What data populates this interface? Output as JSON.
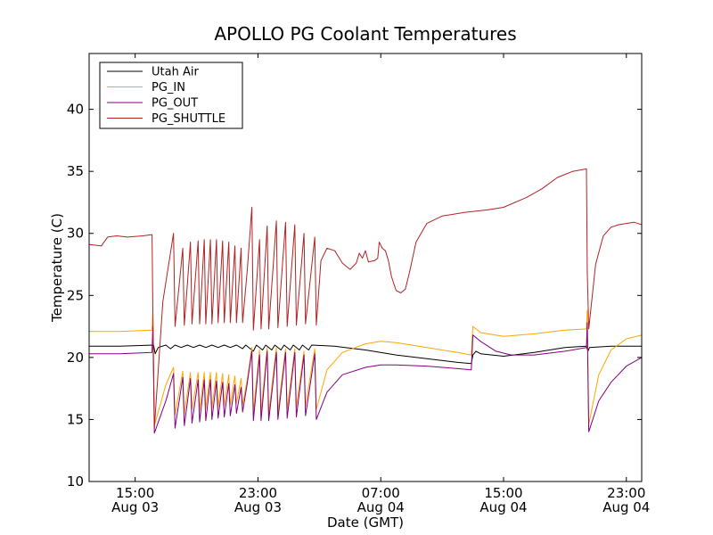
{
  "chart_data": {
    "type": "line",
    "title": "APOLLO PG Coolant Temperatures",
    "xlabel": "Date (GMT)",
    "ylabel": "Temperature (C)",
    "x_unit": "hours since Aug 03 12:00 GMT",
    "xlim": [
      0,
      36
    ],
    "ylim": [
      10,
      44.5
    ],
    "y_ticks": [
      10,
      15,
      20,
      25,
      30,
      35,
      40
    ],
    "x_ticks": [
      {
        "value": 3,
        "line1": "15:00",
        "line2": "Aug 03"
      },
      {
        "value": 11,
        "line1": "23:00",
        "line2": "Aug 03"
      },
      {
        "value": 19,
        "line1": "07:00",
        "line2": "Aug 04"
      },
      {
        "value": 27,
        "line1": "15:00",
        "line2": "Aug 04"
      },
      {
        "value": 35,
        "line1": "23:00",
        "line2": "Aug 04"
      }
    ],
    "grid": false,
    "legend_position": "upper-left",
    "series": [
      {
        "name": "Utah Air",
        "color": "#000000",
        "points": [
          [
            0,
            20.9
          ],
          [
            2,
            20.9
          ],
          [
            4.2,
            21.0
          ],
          [
            4.3,
            20.3
          ],
          [
            4.5,
            20.8
          ],
          [
            5,
            21.0
          ],
          [
            5.3,
            20.7
          ],
          [
            5.6,
            21.0
          ],
          [
            6,
            20.8
          ],
          [
            6.4,
            21.0
          ],
          [
            6.8,
            20.8
          ],
          [
            7.2,
            21.0
          ],
          [
            7.6,
            20.8
          ],
          [
            8,
            21.0
          ],
          [
            8.4,
            20.8
          ],
          [
            8.8,
            21.0
          ],
          [
            9.2,
            20.8
          ],
          [
            9.6,
            21.0
          ],
          [
            10,
            20.7
          ],
          [
            10.2,
            21.0
          ],
          [
            10.7,
            20.5
          ],
          [
            10.9,
            21.0
          ],
          [
            11.3,
            20.6
          ],
          [
            11.5,
            21.0
          ],
          [
            11.9,
            20.6
          ],
          [
            12.1,
            21.0
          ],
          [
            12.5,
            20.6
          ],
          [
            12.7,
            21.0
          ],
          [
            13.1,
            20.6
          ],
          [
            13.3,
            21.0
          ],
          [
            13.7,
            20.6
          ],
          [
            13.9,
            21.0
          ],
          [
            14.3,
            20.6
          ],
          [
            14.5,
            21.0
          ],
          [
            16,
            20.9
          ],
          [
            18,
            20.6
          ],
          [
            20,
            20.2
          ],
          [
            22,
            19.9
          ],
          [
            24,
            19.6
          ],
          [
            24.9,
            19.5
          ],
          [
            25.0,
            20.2
          ],
          [
            25.2,
            20.5
          ],
          [
            25.5,
            20.3
          ],
          [
            27,
            20.1
          ],
          [
            29,
            20.4
          ],
          [
            31,
            20.8
          ],
          [
            32.4,
            20.9
          ],
          [
            32.5,
            20.5
          ],
          [
            32.6,
            20.8
          ],
          [
            34,
            20.9
          ],
          [
            36,
            20.9
          ]
        ]
      },
      {
        "name": "PG_IN",
        "color": "#FFA500",
        "points": [
          [
            0,
            22.1
          ],
          [
            2,
            22.1
          ],
          [
            4.1,
            22.2
          ],
          [
            4.15,
            23.6
          ],
          [
            4.25,
            14.5
          ],
          [
            5,
            17.8
          ],
          [
            5.5,
            19.2
          ],
          [
            5.6,
            15.4
          ],
          [
            6.1,
            18.9
          ],
          [
            6.2,
            15.5
          ],
          [
            6.6,
            18.8
          ],
          [
            6.7,
            15.8
          ],
          [
            7.1,
            18.8
          ],
          [
            7.2,
            15.8
          ],
          [
            7.5,
            18.8
          ],
          [
            7.6,
            15.9
          ],
          [
            7.9,
            18.8
          ],
          [
            8.0,
            15.9
          ],
          [
            8.3,
            18.8
          ],
          [
            8.4,
            16.0
          ],
          [
            8.7,
            18.7
          ],
          [
            8.8,
            16.1
          ],
          [
            9.1,
            18.6
          ],
          [
            9.2,
            16.2
          ],
          [
            9.5,
            18.5
          ],
          [
            9.6,
            16.3
          ],
          [
            9.9,
            18.3
          ],
          [
            10.0,
            16.2
          ],
          [
            10.3,
            18.2
          ],
          [
            10.6,
            20.8
          ],
          [
            10.7,
            15.6
          ],
          [
            11.1,
            20.6
          ],
          [
            11.2,
            15.6
          ],
          [
            11.6,
            20.8
          ],
          [
            11.7,
            15.5
          ],
          [
            12.2,
            20.8
          ],
          [
            12.3,
            15.6
          ],
          [
            12.8,
            20.7
          ],
          [
            12.9,
            15.8
          ],
          [
            13.4,
            20.7
          ],
          [
            13.5,
            16.0
          ],
          [
            14.0,
            20.5
          ],
          [
            14.1,
            16.1
          ],
          [
            14.7,
            20.7
          ],
          [
            14.8,
            15.8
          ],
          [
            15.5,
            19.0
          ],
          [
            16.5,
            20.4
          ],
          [
            18,
            21.1
          ],
          [
            19,
            21.3
          ],
          [
            20,
            21.2
          ],
          [
            22,
            20.8
          ],
          [
            24,
            20.4
          ],
          [
            24.9,
            20.2
          ],
          [
            25.0,
            22.5
          ],
          [
            25.5,
            22.0
          ],
          [
            27,
            21.7
          ],
          [
            29,
            21.9
          ],
          [
            31,
            22.2
          ],
          [
            32.4,
            22.3
          ],
          [
            32.45,
            23.8
          ],
          [
            32.55,
            14.6
          ],
          [
            33.2,
            18.6
          ],
          [
            34,
            20.6
          ],
          [
            35,
            21.5
          ],
          [
            36,
            21.8
          ]
        ]
      },
      {
        "name": "PG_OUT",
        "color": "#800080",
        "points": [
          [
            0,
            20.3
          ],
          [
            2,
            20.3
          ],
          [
            4.1,
            20.4
          ],
          [
            4.15,
            22.5
          ],
          [
            4.25,
            13.9
          ],
          [
            5,
            16.5
          ],
          [
            5.5,
            18.7
          ],
          [
            5.6,
            14.3
          ],
          [
            6.1,
            18.4
          ],
          [
            6.2,
            14.5
          ],
          [
            6.6,
            18.3
          ],
          [
            6.7,
            14.7
          ],
          [
            7.1,
            18.2
          ],
          [
            7.2,
            14.8
          ],
          [
            7.5,
            18.2
          ],
          [
            7.6,
            14.9
          ],
          [
            7.9,
            18.2
          ],
          [
            8.0,
            15.0
          ],
          [
            8.3,
            18.1
          ],
          [
            8.4,
            15.1
          ],
          [
            8.7,
            18.0
          ],
          [
            8.8,
            15.2
          ],
          [
            9.1,
            17.9
          ],
          [
            9.2,
            15.3
          ],
          [
            9.5,
            17.8
          ],
          [
            9.6,
            15.5
          ],
          [
            9.9,
            17.6
          ],
          [
            10.0,
            15.6
          ],
          [
            10.3,
            17.9
          ],
          [
            10.6,
            20.5
          ],
          [
            10.7,
            14.9
          ],
          [
            11.1,
            20.2
          ],
          [
            11.2,
            14.9
          ],
          [
            11.6,
            20.5
          ],
          [
            11.7,
            14.9
          ],
          [
            12.2,
            20.4
          ],
          [
            12.3,
            15.0
          ],
          [
            12.8,
            20.4
          ],
          [
            12.9,
            15.1
          ],
          [
            13.4,
            20.4
          ],
          [
            13.5,
            15.2
          ],
          [
            14.0,
            20.2
          ],
          [
            14.1,
            15.3
          ],
          [
            14.7,
            20.3
          ],
          [
            14.8,
            15.0
          ],
          [
            15.5,
            17.2
          ],
          [
            16.5,
            18.6
          ],
          [
            18,
            19.2
          ],
          [
            19,
            19.4
          ],
          [
            20,
            19.4
          ],
          [
            22,
            19.3
          ],
          [
            24,
            19.1
          ],
          [
            24.9,
            19.0
          ],
          [
            25.0,
            21.8
          ],
          [
            25.5,
            21.3
          ],
          [
            26.5,
            20.5
          ],
          [
            27.5,
            20.2
          ],
          [
            29,
            20.2
          ],
          [
            31,
            20.5
          ],
          [
            32.4,
            20.8
          ],
          [
            32.45,
            22.8
          ],
          [
            32.55,
            14.0
          ],
          [
            33.2,
            16.5
          ],
          [
            34,
            18.0
          ],
          [
            35,
            19.3
          ],
          [
            36,
            20.0
          ]
        ]
      },
      {
        "name": "PG_SHUTTLE",
        "color": "#B22222",
        "points": [
          [
            0,
            29.1
          ],
          [
            0.8,
            29.0
          ],
          [
            1.2,
            29.7
          ],
          [
            1.8,
            29.8
          ],
          [
            2.5,
            29.7
          ],
          [
            3.5,
            29.8
          ],
          [
            4.1,
            29.9
          ],
          [
            4.15,
            23.8
          ],
          [
            4.25,
            14.3
          ],
          [
            4.8,
            24.5
          ],
          [
            5.5,
            30.0
          ],
          [
            5.6,
            22.5
          ],
          [
            6.1,
            28.8
          ],
          [
            6.2,
            22.6
          ],
          [
            6.6,
            29.3
          ],
          [
            6.7,
            22.7
          ],
          [
            7.1,
            29.4
          ],
          [
            7.2,
            22.7
          ],
          [
            7.5,
            29.5
          ],
          [
            7.6,
            22.7
          ],
          [
            7.9,
            29.5
          ],
          [
            8.0,
            22.7
          ],
          [
            8.3,
            29.5
          ],
          [
            8.4,
            22.8
          ],
          [
            8.7,
            29.4
          ],
          [
            8.8,
            22.8
          ],
          [
            9.1,
            29.3
          ],
          [
            9.2,
            22.8
          ],
          [
            9.5,
            29.0
          ],
          [
            9.6,
            22.8
          ],
          [
            9.9,
            28.8
          ],
          [
            10.0,
            22.8
          ],
          [
            10.3,
            27.0
          ],
          [
            10.6,
            32.1
          ],
          [
            10.7,
            22.2
          ],
          [
            11.1,
            29.5
          ],
          [
            11.2,
            22.3
          ],
          [
            11.6,
            30.6
          ],
          [
            11.7,
            22.3
          ],
          [
            12.2,
            31.0
          ],
          [
            12.3,
            22.4
          ],
          [
            12.8,
            30.9
          ],
          [
            12.9,
            22.5
          ],
          [
            13.4,
            30.7
          ],
          [
            13.5,
            22.6
          ],
          [
            14.0,
            30.0
          ],
          [
            14.1,
            22.7
          ],
          [
            14.7,
            29.7
          ],
          [
            14.8,
            22.6
          ],
          [
            15.1,
            27.8
          ],
          [
            15.5,
            28.8
          ],
          [
            16,
            28.6
          ],
          [
            16.5,
            27.6
          ],
          [
            17,
            27.1
          ],
          [
            17.4,
            27.6
          ],
          [
            17.6,
            28.4
          ],
          [
            17.8,
            28.0
          ],
          [
            18.0,
            28.6
          ],
          [
            18.2,
            27.7
          ],
          [
            18.6,
            27.8
          ],
          [
            18.8,
            28.0
          ],
          [
            18.9,
            29.3
          ],
          [
            19.1,
            28.8
          ],
          [
            19.3,
            28.6
          ],
          [
            19.5,
            27.8
          ],
          [
            19.7,
            26.5
          ],
          [
            20,
            25.4
          ],
          [
            20.3,
            25.2
          ],
          [
            20.6,
            25.5
          ],
          [
            20.9,
            27.0
          ],
          [
            21.3,
            29.3
          ],
          [
            22,
            30.8
          ],
          [
            23,
            31.4
          ],
          [
            24.5,
            31.7
          ],
          [
            26,
            31.9
          ],
          [
            27,
            32.1
          ],
          [
            28.5,
            32.9
          ],
          [
            29.5,
            33.6
          ],
          [
            30.5,
            34.5
          ],
          [
            31.5,
            35.0
          ],
          [
            32.4,
            35.2
          ],
          [
            32.45,
            27.0
          ],
          [
            32.55,
            22.3
          ],
          [
            33,
            27.5
          ],
          [
            33.5,
            29.8
          ],
          [
            34,
            30.5
          ],
          [
            34.5,
            30.7
          ],
          [
            35,
            30.8
          ],
          [
            35.5,
            30.9
          ],
          [
            36,
            30.7
          ]
        ]
      }
    ]
  }
}
